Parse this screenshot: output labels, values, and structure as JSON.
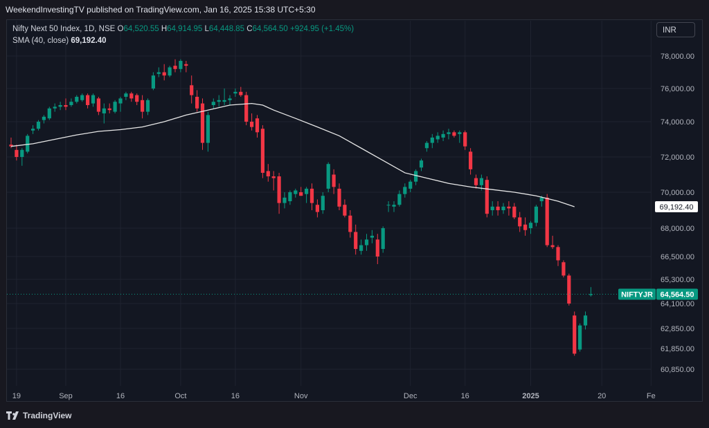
{
  "header": {
    "published": "WeekendInvestingTV published on TradingView.com, Jan 16, 2025 15:38 UTC+5:30"
  },
  "legend": {
    "symbol": "Nifty Next 50 Index, 1D, NSE",
    "o_label": "O",
    "o_value": "64,520.55",
    "h_label": "H",
    "h_value": "64,914.95",
    "l_label": "L",
    "l_value": "64,448.85",
    "c_label": "C",
    "c_value": "64,564.50",
    "change": "+924.95 (+1.45%)",
    "sma_label": "SMA (40, close)",
    "sma_value": "69,192.40"
  },
  "currency_button": "INR",
  "brand": "TradingView",
  "colors": {
    "up": "#089981",
    "down": "#f23645",
    "sma": "#e8e8e8",
    "grid": "#1f2330",
    "bg": "#131722"
  },
  "chart_data": {
    "type": "candlestick",
    "y_ticks": [
      {
        "label": "78,000.00",
        "value": 78000
      },
      {
        "label": "76,000.00",
        "value": 76000
      },
      {
        "label": "74,000.00",
        "value": 74000
      },
      {
        "label": "72,000.00",
        "value": 72000
      },
      {
        "label": "70,000.00",
        "value": 70000
      },
      {
        "label": "68,000.00",
        "value": 68000
      },
      {
        "label": "66,500.00",
        "value": 66500
      },
      {
        "label": "65,300.00",
        "value": 65300
      },
      {
        "label": "64,100.00",
        "value": 64100
      },
      {
        "label": "62,850.00",
        "value": 62850
      },
      {
        "label": "61,850.00",
        "value": 61850
      },
      {
        "label": "60,850.00",
        "value": 60850
      }
    ],
    "x_ticks": [
      {
        "label": "19",
        "index": 1
      },
      {
        "label": "Sep",
        "index": 10
      },
      {
        "label": "16",
        "index": 20
      },
      {
        "label": "Oct",
        "index": 31
      },
      {
        "label": "16",
        "index": 41
      },
      {
        "label": "Nov",
        "index": 53
      },
      {
        "label": "Dec",
        "index": 73
      },
      {
        "label": "16",
        "index": 83
      },
      {
        "label": "2025",
        "index": 95,
        "bold": true
      },
      {
        "label": "20",
        "index": 108
      },
      {
        "label": "Fe",
        "index": 117
      }
    ],
    "last_price_label": "64,564.50",
    "last_price_symbol": "NIFTYJR",
    "last_price": 64564.5,
    "sma_price_label": "69,192.40",
    "sma_price": 69192.4,
    "candles": [
      {
        "o": 72700,
        "h": 73100,
        "l": 72500,
        "c": 72600
      },
      {
        "o": 72400,
        "h": 72700,
        "l": 71800,
        "c": 72000
      },
      {
        "o": 72000,
        "h": 72500,
        "l": 71500,
        "c": 72400
      },
      {
        "o": 72300,
        "h": 73300,
        "l": 72200,
        "c": 73200
      },
      {
        "o": 73500,
        "h": 73800,
        "l": 73300,
        "c": 73600
      },
      {
        "o": 73600,
        "h": 74100,
        "l": 73500,
        "c": 74000
      },
      {
        "o": 74100,
        "h": 74400,
        "l": 73900,
        "c": 74300
      },
      {
        "o": 74200,
        "h": 74900,
        "l": 74100,
        "c": 74800
      },
      {
        "o": 74800,
        "h": 75100,
        "l": 74600,
        "c": 74900
      },
      {
        "o": 74900,
        "h": 75200,
        "l": 74700,
        "c": 75000
      },
      {
        "o": 75000,
        "h": 75400,
        "l": 74700,
        "c": 74900
      },
      {
        "o": 75000,
        "h": 75400,
        "l": 74900,
        "c": 75200
      },
      {
        "o": 75200,
        "h": 75600,
        "l": 75100,
        "c": 75500
      },
      {
        "o": 75300,
        "h": 75700,
        "l": 75200,
        "c": 75600
      },
      {
        "o": 75600,
        "h": 75700,
        "l": 74800,
        "c": 75000
      },
      {
        "o": 75100,
        "h": 75700,
        "l": 74900,
        "c": 75600
      },
      {
        "o": 75400,
        "h": 75500,
        "l": 74400,
        "c": 74600
      },
      {
        "o": 74500,
        "h": 75100,
        "l": 73900,
        "c": 74800
      },
      {
        "o": 74800,
        "h": 75100,
        "l": 74500,
        "c": 74700
      },
      {
        "o": 74600,
        "h": 75300,
        "l": 74500,
        "c": 75200
      },
      {
        "o": 75100,
        "h": 75500,
        "l": 74600,
        "c": 75400
      },
      {
        "o": 75500,
        "h": 75800,
        "l": 75300,
        "c": 75700
      },
      {
        "o": 75700,
        "h": 75800,
        "l": 75200,
        "c": 75400
      },
      {
        "o": 75600,
        "h": 75700,
        "l": 75000,
        "c": 75200
      },
      {
        "o": 75300,
        "h": 75600,
        "l": 74200,
        "c": 74600
      },
      {
        "o": 74600,
        "h": 75400,
        "l": 74400,
        "c": 75300
      },
      {
        "o": 76000,
        "h": 77000,
        "l": 75900,
        "c": 76800
      },
      {
        "o": 76900,
        "h": 77300,
        "l": 76700,
        "c": 77000
      },
      {
        "o": 77000,
        "h": 77500,
        "l": 76500,
        "c": 76800
      },
      {
        "o": 76800,
        "h": 77400,
        "l": 76700,
        "c": 77300
      },
      {
        "o": 77400,
        "h": 77800,
        "l": 77000,
        "c": 77200
      },
      {
        "o": 77200,
        "h": 77800,
        "l": 77000,
        "c": 77700
      },
      {
        "o": 77500,
        "h": 77700,
        "l": 77000,
        "c": 77400
      },
      {
        "o": 76200,
        "h": 76800,
        "l": 75100,
        "c": 75600
      },
      {
        "o": 75500,
        "h": 75900,
        "l": 74600,
        "c": 74800
      },
      {
        "o": 75100,
        "h": 75400,
        "l": 72400,
        "c": 72800
      },
      {
        "o": 72800,
        "h": 74600,
        "l": 72300,
        "c": 74400
      },
      {
        "o": 75000,
        "h": 75400,
        "l": 74800,
        "c": 75200
      },
      {
        "o": 75200,
        "h": 75600,
        "l": 74900,
        "c": 75300
      },
      {
        "o": 75200,
        "h": 76000,
        "l": 75000,
        "c": 75300
      },
      {
        "o": 75300,
        "h": 75600,
        "l": 75000,
        "c": 75400
      },
      {
        "o": 75700,
        "h": 76000,
        "l": 75500,
        "c": 75800
      },
      {
        "o": 75800,
        "h": 76100,
        "l": 75500,
        "c": 75600
      },
      {
        "o": 75600,
        "h": 75800,
        "l": 73800,
        "c": 74000
      },
      {
        "o": 74000,
        "h": 74500,
        "l": 73500,
        "c": 73700
      },
      {
        "o": 74200,
        "h": 74400,
        "l": 73100,
        "c": 73400
      },
      {
        "o": 73600,
        "h": 73800,
        "l": 70800,
        "c": 71100
      },
      {
        "o": 71200,
        "h": 71600,
        "l": 70600,
        "c": 70900
      },
      {
        "o": 70900,
        "h": 71200,
        "l": 70100,
        "c": 70800
      },
      {
        "o": 70900,
        "h": 71100,
        "l": 68800,
        "c": 69400
      },
      {
        "o": 69400,
        "h": 70000,
        "l": 69100,
        "c": 69700
      },
      {
        "o": 69500,
        "h": 70100,
        "l": 69300,
        "c": 70000
      },
      {
        "o": 69900,
        "h": 70200,
        "l": 69700,
        "c": 70100
      },
      {
        "o": 70000,
        "h": 70300,
        "l": 69800,
        "c": 69800
      },
      {
        "o": 69900,
        "h": 70300,
        "l": 69400,
        "c": 70200
      },
      {
        "o": 70200,
        "h": 70500,
        "l": 69000,
        "c": 69400
      },
      {
        "o": 69300,
        "h": 69600,
        "l": 68600,
        "c": 68900
      },
      {
        "o": 69000,
        "h": 70000,
        "l": 68800,
        "c": 69800
      },
      {
        "o": 70200,
        "h": 71700,
        "l": 70000,
        "c": 71600
      },
      {
        "o": 71000,
        "h": 71300,
        "l": 69900,
        "c": 70300
      },
      {
        "o": 70200,
        "h": 70500,
        "l": 69000,
        "c": 69200
      },
      {
        "o": 69300,
        "h": 69600,
        "l": 68600,
        "c": 68700
      },
      {
        "o": 68700,
        "h": 69000,
        "l": 67500,
        "c": 67800
      },
      {
        "o": 67800,
        "h": 68200,
        "l": 66600,
        "c": 66900
      },
      {
        "o": 66800,
        "h": 67400,
        "l": 66600,
        "c": 67100
      },
      {
        "o": 67100,
        "h": 67700,
        "l": 66800,
        "c": 67400
      },
      {
        "o": 67500,
        "h": 67900,
        "l": 67200,
        "c": 67600
      },
      {
        "o": 67400,
        "h": 67700,
        "l": 66100,
        "c": 66500
      },
      {
        "o": 66900,
        "h": 68100,
        "l": 66700,
        "c": 68000
      },
      {
        "o": 69300,
        "h": 69500,
        "l": 68900,
        "c": 69300
      },
      {
        "o": 69200,
        "h": 69500,
        "l": 68900,
        "c": 69300
      },
      {
        "o": 69300,
        "h": 70100,
        "l": 69200,
        "c": 69900
      },
      {
        "o": 69900,
        "h": 70500,
        "l": 69700,
        "c": 70300
      },
      {
        "o": 70200,
        "h": 70700,
        "l": 70000,
        "c": 70600
      },
      {
        "o": 70600,
        "h": 71300,
        "l": 70400,
        "c": 71200
      },
      {
        "o": 71400,
        "h": 71900,
        "l": 71200,
        "c": 71800
      },
      {
        "o": 72500,
        "h": 72900,
        "l": 72300,
        "c": 72800
      },
      {
        "o": 72800,
        "h": 73300,
        "l": 72500,
        "c": 73100
      },
      {
        "o": 73000,
        "h": 73400,
        "l": 72800,
        "c": 73200
      },
      {
        "o": 73100,
        "h": 73500,
        "l": 72900,
        "c": 73300
      },
      {
        "o": 73300,
        "h": 73600,
        "l": 73000,
        "c": 73400
      },
      {
        "o": 73400,
        "h": 73500,
        "l": 73100,
        "c": 73200
      },
      {
        "o": 73300,
        "h": 73500,
        "l": 72800,
        "c": 73400
      },
      {
        "o": 73400,
        "h": 73500,
        "l": 72400,
        "c": 72600
      },
      {
        "o": 72300,
        "h": 72500,
        "l": 71000,
        "c": 71300
      },
      {
        "o": 70800,
        "h": 71000,
        "l": 70200,
        "c": 70400
      },
      {
        "o": 70400,
        "h": 71000,
        "l": 70100,
        "c": 70800
      },
      {
        "o": 70700,
        "h": 70900,
        "l": 68600,
        "c": 68800
      },
      {
        "o": 69000,
        "h": 69500,
        "l": 68700,
        "c": 69200
      },
      {
        "o": 69200,
        "h": 69500,
        "l": 68700,
        "c": 69000
      },
      {
        "o": 69000,
        "h": 69400,
        "l": 68800,
        "c": 69200
      },
      {
        "o": 69200,
        "h": 69500,
        "l": 68700,
        "c": 69100
      },
      {
        "o": 69200,
        "h": 69400,
        "l": 68500,
        "c": 68600
      },
      {
        "o": 68600,
        "h": 68900,
        "l": 67800,
        "c": 68100
      },
      {
        "o": 68200,
        "h": 68600,
        "l": 67600,
        "c": 67900
      },
      {
        "o": 68000,
        "h": 68400,
        "l": 67700,
        "c": 68300
      },
      {
        "o": 68300,
        "h": 69300,
        "l": 68100,
        "c": 69200
      },
      {
        "o": 69500,
        "h": 69800,
        "l": 69200,
        "c": 69700
      },
      {
        "o": 69700,
        "h": 69900,
        "l": 67000,
        "c": 67100
      },
      {
        "o": 67100,
        "h": 67600,
        "l": 66900,
        "c": 67000
      },
      {
        "o": 67000,
        "h": 67100,
        "l": 66000,
        "c": 66300
      },
      {
        "o": 66200,
        "h": 66300,
        "l": 65400,
        "c": 65500
      },
      {
        "o": 65500,
        "h": 65600,
        "l": 64000,
        "c": 64100
      },
      {
        "o": 63500,
        "h": 63700,
        "l": 61500,
        "c": 61600
      },
      {
        "o": 61800,
        "h": 63100,
        "l": 61700,
        "c": 63000
      },
      {
        "o": 63000,
        "h": 63700,
        "l": 62800,
        "c": 63500
      },
      {
        "o": 64520,
        "h": 64915,
        "l": 64449,
        "c": 64565
      }
    ],
    "sma": [
      [
        0,
        72600
      ],
      [
        4,
        72750
      ],
      [
        8,
        73000
      ],
      [
        12,
        73250
      ],
      [
        16,
        73450
      ],
      [
        20,
        73550
      ],
      [
        24,
        73700
      ],
      [
        28,
        74000
      ],
      [
        32,
        74400
      ],
      [
        36,
        74700
      ],
      [
        40,
        75000
      ],
      [
        44,
        75100
      ],
      [
        46,
        75000
      ],
      [
        48,
        74700
      ],
      [
        52,
        74200
      ],
      [
        56,
        73700
      ],
      [
        60,
        73200
      ],
      [
        64,
        72500
      ],
      [
        68,
        71800
      ],
      [
        72,
        71100
      ],
      [
        76,
        70800
      ],
      [
        80,
        70500
      ],
      [
        84,
        70300
      ],
      [
        88,
        70150
      ],
      [
        92,
        70000
      ],
      [
        96,
        69800
      ],
      [
        100,
        69500
      ],
      [
        103,
        69192.4
      ]
    ]
  }
}
